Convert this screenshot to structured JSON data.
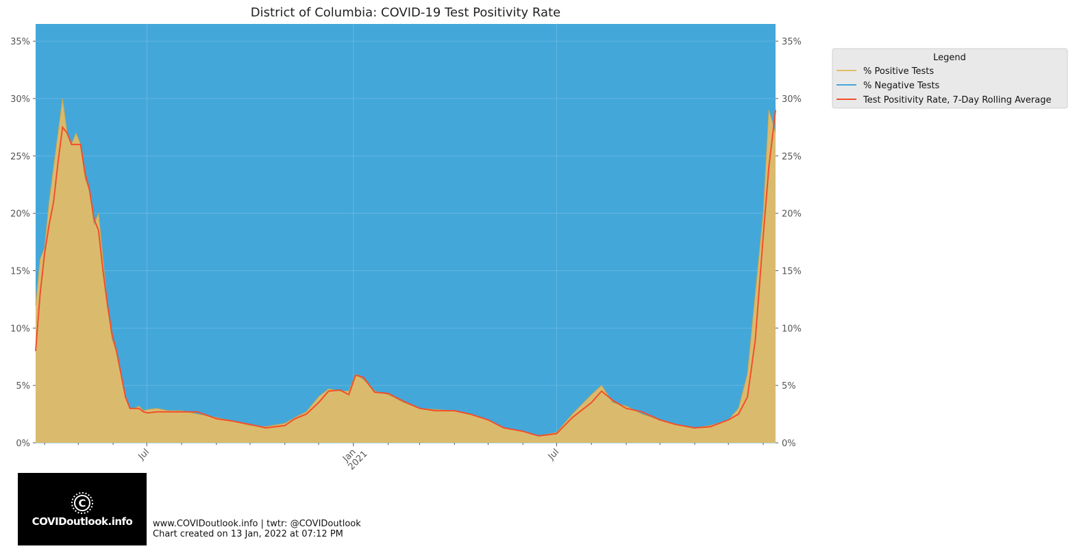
{
  "colors": {
    "positive": "#E3BC67",
    "negative": "#43A7DA",
    "rolling": "#F24E2A",
    "plot_grid": "#66B6E0",
    "legend_bg": "#E9E9E9"
  },
  "logo": {
    "text": "COVIDoutlook.info",
    "icon": "virus-c-icon"
  },
  "footer": {
    "line1": "www.COVIDoutlook.info | twtr: @COVIDoutlook",
    "line2": "Chart created on 13 Jan, 2022 at 07:12 PM"
  },
  "chart_data": {
    "type": "area",
    "title": "District of Columbia: COVID-19 Test Positivity Rate",
    "xlabel": "",
    "ylabel": "",
    "ylim": [
      0,
      0.365
    ],
    "xlim": [
      "2020-03-24",
      "2022-01-12"
    ],
    "y_ticks": [
      0,
      0.05,
      0.1,
      0.15,
      0.2,
      0.25,
      0.3,
      0.35
    ],
    "y_tick_labels": [
      "0%",
      "5%",
      "10%",
      "15%",
      "20%",
      "25%",
      "30%",
      "35%"
    ],
    "x_major_ticks": [
      {
        "date": "2020-07-01",
        "label": "Jul",
        "sublabel": ""
      },
      {
        "date": "2021-01-01",
        "label": "Jan",
        "sublabel": "2021"
      },
      {
        "date": "2021-07-01",
        "label": "Jul",
        "sublabel": ""
      }
    ],
    "x_minor_ticks": [
      "2020-04-01",
      "2020-05-01",
      "2020-06-01",
      "2020-08-01",
      "2020-09-01",
      "2020-10-01",
      "2020-11-01",
      "2020-12-01",
      "2021-02-01",
      "2021-03-01",
      "2021-04-01",
      "2021-05-01",
      "2021-06-01",
      "2021-08-01",
      "2021-09-01",
      "2021-10-01",
      "2021-11-01",
      "2021-12-01",
      "2022-01-01"
    ],
    "grid": true,
    "legend": {
      "title": "Legend",
      "placement": "outside-top-right",
      "entries": [
        "% Positive Tests",
        "% Negative Tests",
        "Test Positivity Rate, 7-Day Rolling Average"
      ]
    },
    "series": [
      {
        "name": "% Positive Tests",
        "x": [
          "2020-03-24",
          "2020-03-28",
          "2020-04-01",
          "2020-04-05",
          "2020-04-09",
          "2020-04-13",
          "2020-04-17",
          "2020-04-21",
          "2020-04-25",
          "2020-04-29",
          "2020-05-03",
          "2020-05-07",
          "2020-05-11",
          "2020-05-15",
          "2020-05-19",
          "2020-05-23",
          "2020-05-27",
          "2020-05-31",
          "2020-06-04",
          "2020-06-08",
          "2020-06-12",
          "2020-06-16",
          "2020-06-20",
          "2020-06-24",
          "2020-06-28",
          "2020-07-02",
          "2020-07-10",
          "2020-07-20",
          "2020-08-01",
          "2020-08-15",
          "2020-09-01",
          "2020-09-15",
          "2020-10-01",
          "2020-10-15",
          "2020-11-01",
          "2020-11-10",
          "2020-11-20",
          "2020-12-01",
          "2020-12-10",
          "2020-12-20",
          "2020-12-28",
          "2021-01-03",
          "2021-01-10",
          "2021-01-20",
          "2021-02-01",
          "2021-02-15",
          "2021-03-01",
          "2021-03-15",
          "2021-04-01",
          "2021-04-15",
          "2021-05-01",
          "2021-05-15",
          "2021-06-01",
          "2021-06-15",
          "2021-07-01",
          "2021-07-15",
          "2021-08-01",
          "2021-08-10",
          "2021-08-20",
          "2021-09-01",
          "2021-09-15",
          "2021-10-01",
          "2021-10-15",
          "2021-11-01",
          "2021-11-15",
          "2021-12-01",
          "2021-12-10",
          "2021-12-18",
          "2021-12-25",
          "2022-01-01",
          "2022-01-06",
          "2022-01-12"
        ],
        "values": [
          0.12,
          0.16,
          0.17,
          0.21,
          0.24,
          0.27,
          0.3,
          0.27,
          0.26,
          0.27,
          0.26,
          0.23,
          0.22,
          0.19,
          0.2,
          0.16,
          0.12,
          0.09,
          0.08,
          0.06,
          0.04,
          0.03,
          0.03,
          0.032,
          0.028,
          0.029,
          0.03,
          0.028,
          0.028,
          0.025,
          0.022,
          0.019,
          0.015,
          0.014,
          0.017,
          0.022,
          0.027,
          0.04,
          0.047,
          0.045,
          0.045,
          0.06,
          0.055,
          0.045,
          0.042,
          0.035,
          0.03,
          0.029,
          0.028,
          0.025,
          0.02,
          0.013,
          0.01,
          0.006,
          0.009,
          0.025,
          0.042,
          0.05,
          0.035,
          0.032,
          0.025,
          0.02,
          0.016,
          0.013,
          0.015,
          0.02,
          0.03,
          0.06,
          0.13,
          0.2,
          0.29,
          0.27
        ]
      },
      {
        "name": "% Negative Tests",
        "note_complement": true
      },
      {
        "name": "Test Positivity Rate, 7-Day Rolling Average",
        "x": [
          "2020-03-24",
          "2020-03-28",
          "2020-04-01",
          "2020-04-05",
          "2020-04-09",
          "2020-04-13",
          "2020-04-17",
          "2020-04-21",
          "2020-04-25",
          "2020-04-29",
          "2020-05-03",
          "2020-05-07",
          "2020-05-11",
          "2020-05-15",
          "2020-05-19",
          "2020-05-23",
          "2020-05-27",
          "2020-05-31",
          "2020-06-04",
          "2020-06-08",
          "2020-06-12",
          "2020-06-16",
          "2020-06-20",
          "2020-06-24",
          "2020-06-28",
          "2020-07-02",
          "2020-07-10",
          "2020-07-20",
          "2020-08-01",
          "2020-08-15",
          "2020-09-01",
          "2020-09-15",
          "2020-10-01",
          "2020-10-15",
          "2020-11-01",
          "2020-11-10",
          "2020-11-20",
          "2020-12-01",
          "2020-12-10",
          "2020-12-20",
          "2020-12-28",
          "2021-01-03",
          "2021-01-10",
          "2021-01-20",
          "2021-02-01",
          "2021-02-15",
          "2021-03-01",
          "2021-03-15",
          "2021-04-01",
          "2021-04-15",
          "2021-05-01",
          "2021-05-15",
          "2021-06-01",
          "2021-06-15",
          "2021-07-01",
          "2021-07-15",
          "2021-08-01",
          "2021-08-10",
          "2021-08-20",
          "2021-09-01",
          "2021-09-15",
          "2021-10-01",
          "2021-10-15",
          "2021-11-01",
          "2021-11-15",
          "2021-12-01",
          "2021-12-10",
          "2021-12-18",
          "2021-12-25",
          "2022-01-01",
          "2022-01-06",
          "2022-01-12"
        ],
        "values": [
          0.08,
          0.13,
          0.165,
          0.19,
          0.21,
          0.245,
          0.275,
          0.27,
          0.26,
          0.26,
          0.26,
          0.235,
          0.22,
          0.195,
          0.185,
          0.15,
          0.12,
          0.095,
          0.08,
          0.06,
          0.04,
          0.03,
          0.03,
          0.03,
          0.027,
          0.026,
          0.027,
          0.027,
          0.027,
          0.027,
          0.021,
          0.019,
          0.016,
          0.013,
          0.015,
          0.021,
          0.025,
          0.035,
          0.045,
          0.046,
          0.042,
          0.059,
          0.057,
          0.044,
          0.043,
          0.036,
          0.03,
          0.028,
          0.028,
          0.025,
          0.02,
          0.013,
          0.01,
          0.006,
          0.008,
          0.022,
          0.035,
          0.045,
          0.037,
          0.03,
          0.027,
          0.02,
          0.016,
          0.013,
          0.014,
          0.02,
          0.025,
          0.04,
          0.09,
          0.18,
          0.24,
          0.29
        ]
      }
    ]
  }
}
